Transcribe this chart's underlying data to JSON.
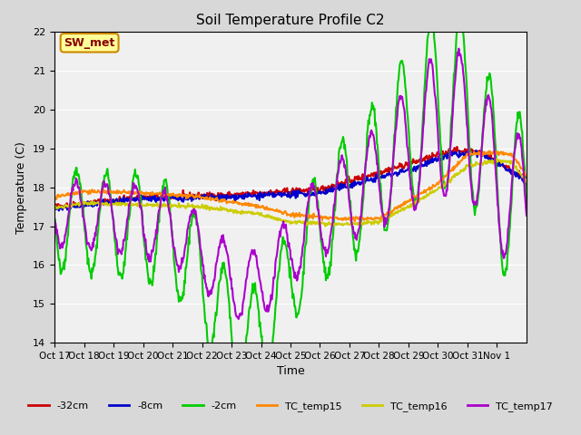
{
  "title": "Soil Temperature Profile C2",
  "xlabel": "Time",
  "ylabel": "Temperature (C)",
  "ylim": [
    14.0,
    22.0
  ],
  "yticks": [
    14.0,
    15.0,
    16.0,
    17.0,
    18.0,
    19.0,
    20.0,
    21.0,
    22.0
  ],
  "xtick_labels": [
    "Oct 17",
    "Oct 18",
    "Oct 19",
    "Oct 20",
    "Oct 21",
    "Oct 22",
    "Oct 23",
    "Oct 24",
    "Oct 25",
    "Oct 26",
    "Oct 27",
    "Oct 28",
    "Oct 29",
    "Oct 30",
    "Oct 31",
    "Nov 1"
  ],
  "series_colors": {
    "-32cm": "#cc0000",
    "-8cm": "#0000cc",
    "-2cm": "#00cc00",
    "TC_temp15": "#ff8800",
    "TC_temp16": "#cccc00",
    "TC_temp17": "#aa00cc"
  },
  "lw": 1.5,
  "legend_label": "SW_met",
  "legend_box_color": "#ffff99",
  "legend_box_edge": "#cc8800",
  "legend_text_color": "#880000",
  "fig_bg_color": "#d8d8d8",
  "plot_bg_color": "#f0f0f0"
}
